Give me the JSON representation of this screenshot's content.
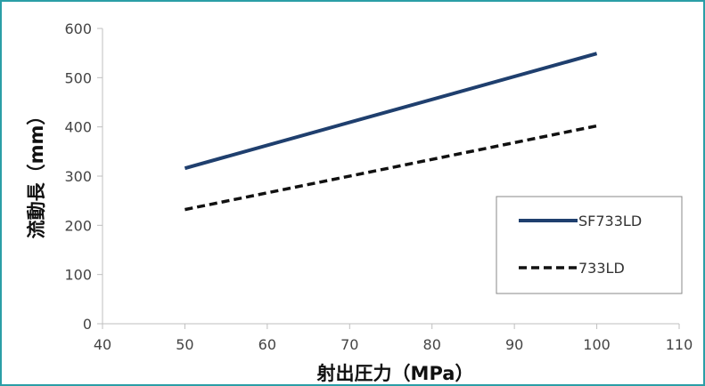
{
  "chart_data": {
    "type": "line",
    "title": "",
    "xlabel": "射出圧力（MPa）",
    "ylabel": "流動長（mm）",
    "xlim": [
      40,
      110
    ],
    "ylim": [
      0,
      600
    ],
    "x_ticks": [
      40,
      50,
      60,
      70,
      80,
      90,
      100,
      110
    ],
    "y_ticks": [
      0,
      100,
      200,
      300,
      400,
      500,
      600
    ],
    "grid": {
      "x": false,
      "y": false
    },
    "legend_position": "right",
    "series": [
      {
        "name": "SF733LD",
        "color": "#1f3f6e",
        "line_style": "solid",
        "points": [
          [
            50,
            316
          ],
          [
            100,
            549
          ]
        ]
      },
      {
        "name": "733LD",
        "color": "#111111",
        "line_style": "dashed",
        "points": [
          [
            50,
            232
          ],
          [
            100,
            402
          ]
        ]
      }
    ]
  }
}
